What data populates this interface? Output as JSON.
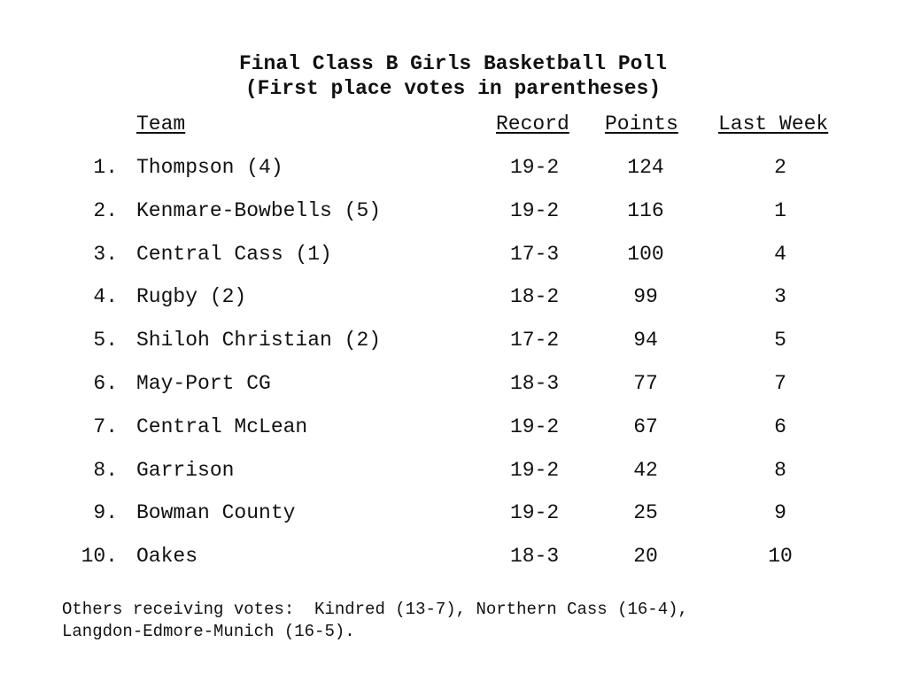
{
  "title": {
    "line1": "Final Class B Girls Basketball Poll",
    "line2": "(First place votes in parentheses)"
  },
  "headers": {
    "team": "Team",
    "record": "Record",
    "points": "Points",
    "last_week": "Last Week"
  },
  "rows": [
    {
      "rank": "1.",
      "team": "Thompson (4)",
      "record": "19-2",
      "points": "124",
      "last_week": "2"
    },
    {
      "rank": "2.",
      "team": "Kenmare-Bowbells (5)",
      "record": "19-2",
      "points": "116",
      "last_week": "1"
    },
    {
      "rank": "3.",
      "team": "Central Cass (1)",
      "record": "17-3",
      "points": "100",
      "last_week": "4"
    },
    {
      "rank": "4.",
      "team": "Rugby (2)",
      "record": "18-2",
      "points": "99",
      "last_week": "3"
    },
    {
      "rank": "5.",
      "team": "Shiloh Christian (2)",
      "record": "17-2",
      "points": "94",
      "last_week": "5"
    },
    {
      "rank": "6.",
      "team": "May-Port CG",
      "record": "18-3",
      "points": "77",
      "last_week": "7"
    },
    {
      "rank": "7.",
      "team": "Central McLean",
      "record": "19-2",
      "points": "67",
      "last_week": "6"
    },
    {
      "rank": "8.",
      "team": "Garrison",
      "record": "19-2",
      "points": "42",
      "last_week": "8"
    },
    {
      "rank": "9.",
      "team": "Bowman County",
      "record": "19-2",
      "points": "25",
      "last_week": "9"
    },
    {
      "rank": "10.",
      "team": "Oakes",
      "record": "18-3",
      "points": "20",
      "last_week": "10"
    }
  ],
  "footer": {
    "line1": "Others receiving votes:  Kindred (13-7), Northern Cass (16-4),",
    "line2": "Langdon-Edmore-Munich (16-5)."
  }
}
